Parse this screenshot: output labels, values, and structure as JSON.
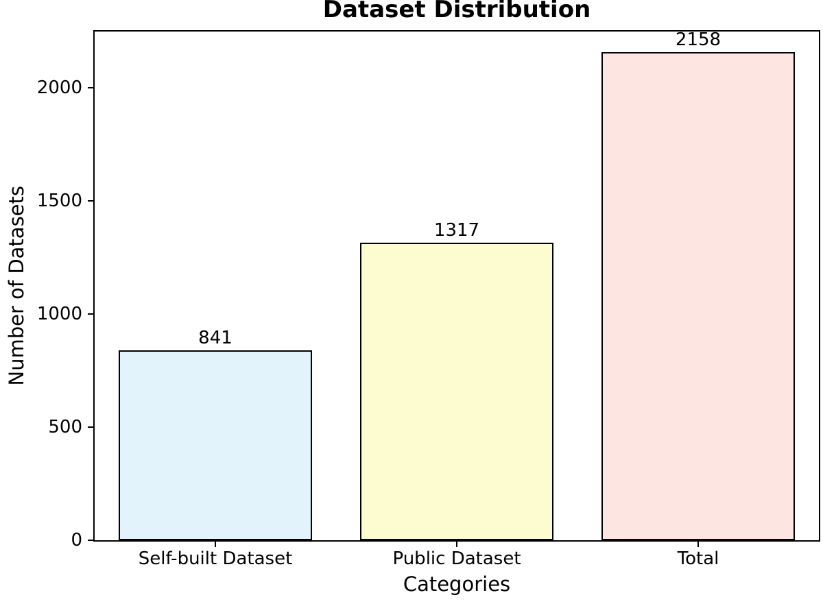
{
  "chart_data": {
    "type": "bar",
    "title": "Dataset Distribution",
    "xlabel": "Categories",
    "ylabel": "Number of Datasets",
    "categories": [
      "Self-built Dataset",
      "Public Dataset",
      "Total"
    ],
    "values": [
      841,
      1317,
      2158
    ],
    "bar_value_labels": [
      "841",
      "1317",
      "2158"
    ],
    "bar_colors": [
      "#e2f3fb",
      "#fdfbd0",
      "#fde5e2"
    ],
    "bar_edge_color": "#000000",
    "bar_width_fraction": 0.8,
    "y_ticks": [
      0,
      500,
      1000,
      1500,
      2000
    ],
    "ylim": [
      0,
      2250
    ],
    "grid": false,
    "legend": null,
    "frame_color": "#000000",
    "background_color": "#ffffff"
  }
}
